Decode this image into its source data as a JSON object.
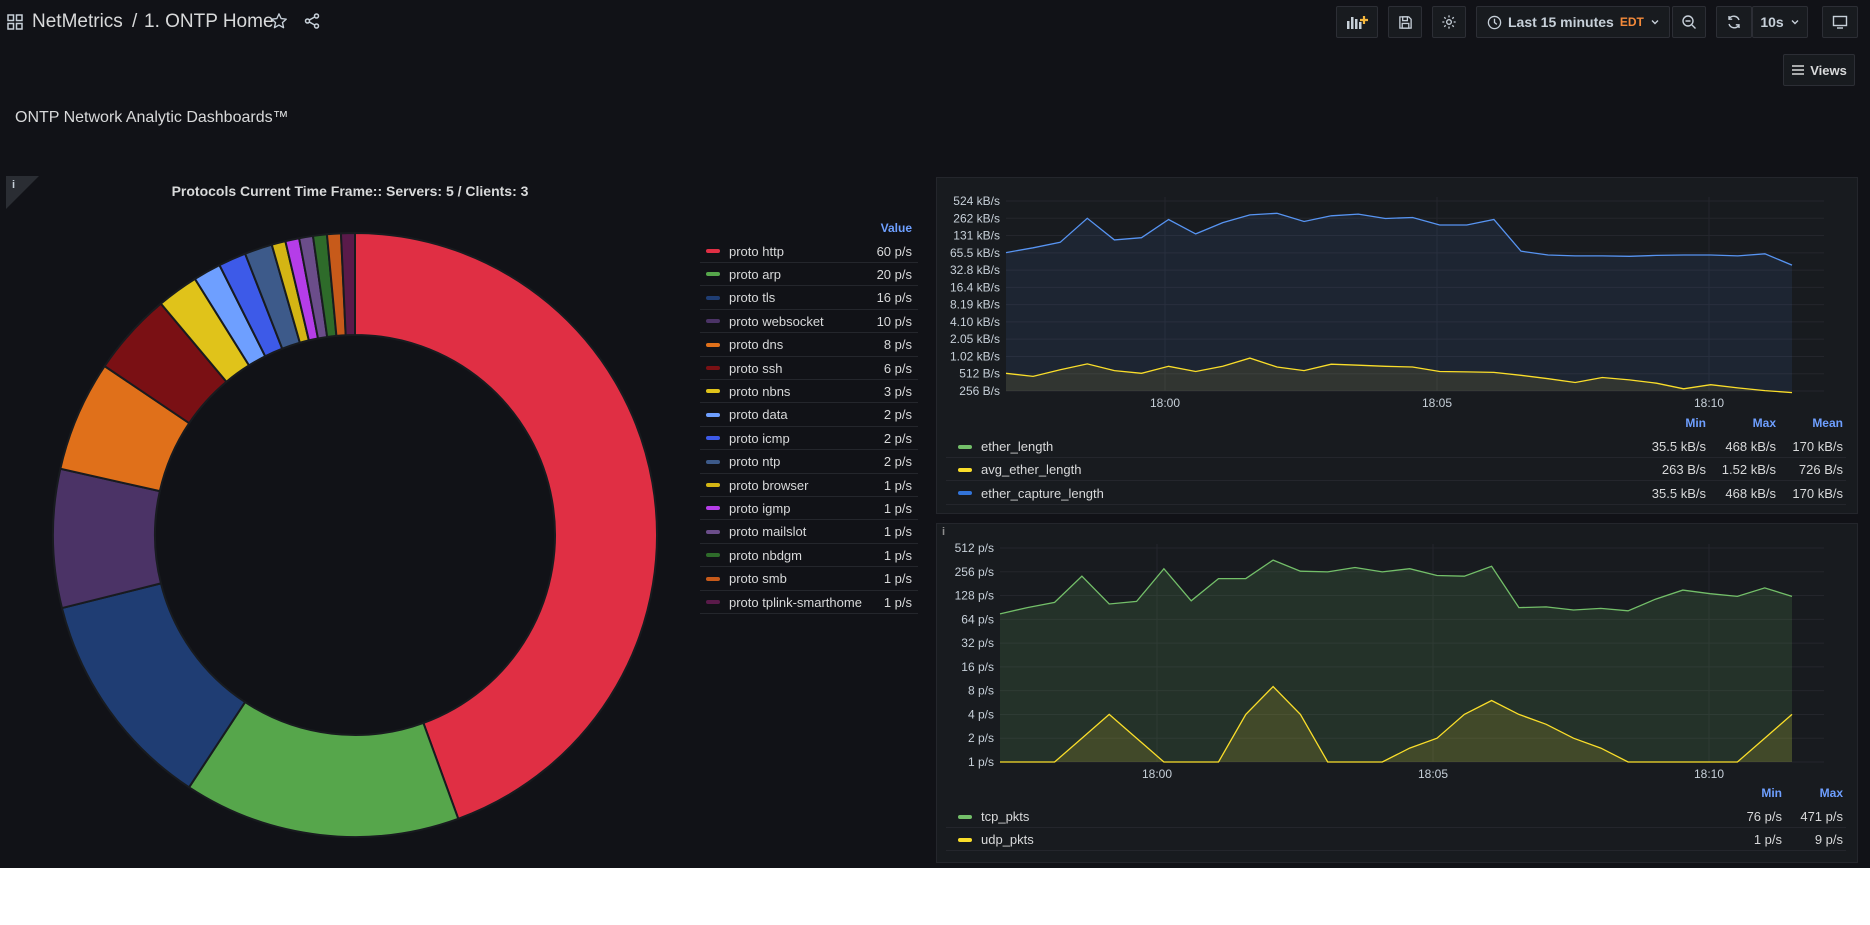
{
  "header": {
    "app_name": "NetMetrics",
    "separator": "/",
    "dashboard_title": "1. ONTP Home",
    "time_range": "Last 15 minutes",
    "timezone": "EDT",
    "refresh_interval": "10s",
    "views_label": "Views"
  },
  "dashboard": {
    "heading": "ONTP Network Analytic Dashboards™"
  },
  "protocols": {
    "title": "Protocols Current Time Frame:: Servers: 5 / Clients: 3",
    "legend_value_header": "Value",
    "items": [
      {
        "name": "proto http",
        "value": "60 p/s",
        "color": "#e02f44"
      },
      {
        "name": "proto arp",
        "value": "20 p/s",
        "color": "#56a64b"
      },
      {
        "name": "proto tls",
        "value": "16 p/s",
        "color": "#1f3d73"
      },
      {
        "name": "proto websocket",
        "value": "10 p/s",
        "color": "#4b3366"
      },
      {
        "name": "proto dns",
        "value": "8 p/s",
        "color": "#e0701a"
      },
      {
        "name": "proto ssh",
        "value": "6 p/s",
        "color": "#7a1014"
      },
      {
        "name": "proto nbns",
        "value": "3 p/s",
        "color": "#e0c31a"
      },
      {
        "name": "proto data",
        "value": "2 p/s",
        "color": "#6e9fff"
      },
      {
        "name": "proto icmp",
        "value": "2 p/s",
        "color": "#3d5ae8"
      },
      {
        "name": "proto ntp",
        "value": "2 p/s",
        "color": "#3d5a8a"
      },
      {
        "name": "proto browser",
        "value": "1 p/s",
        "color": "#d4b514"
      },
      {
        "name": "proto igmp",
        "value": "1 p/s",
        "color": "#b53de8"
      },
      {
        "name": "proto mailslot",
        "value": "1 p/s",
        "color": "#6b4d8a"
      },
      {
        "name": "proto nbdgm",
        "value": "1 p/s",
        "color": "#2e6b2a"
      },
      {
        "name": "proto smb",
        "value": "1 p/s",
        "color": "#c75a1a"
      },
      {
        "name": "proto tplink-smarthome",
        "value": "1 p/s",
        "color": "#5a1a4a"
      }
    ]
  },
  "chart_data": [
    {
      "type": "pie",
      "title": "Protocols Current Time Frame:: Servers: 5 / Clients: 3",
      "categories": [
        "proto http",
        "proto arp",
        "proto tls",
        "proto websocket",
        "proto dns",
        "proto ssh",
        "proto nbns",
        "proto data",
        "proto icmp",
        "proto ntp",
        "proto browser",
        "proto igmp",
        "proto mailslot",
        "proto nbdgm",
        "proto smb",
        "proto tplink-smarthome"
      ],
      "values": [
        60,
        20,
        16,
        10,
        8,
        6,
        3,
        2,
        2,
        2,
        1,
        1,
        1,
        1,
        1,
        1
      ],
      "unit": "p/s",
      "legend": "right"
    },
    {
      "type": "line",
      "scale": "log2",
      "y_ticks": [
        "256 B/s",
        "512 B/s",
        "1.02 kB/s",
        "2.05 kB/s",
        "4.10 kB/s",
        "8.19 kB/s",
        "16.4 kB/s",
        "32.8 kB/s",
        "65.5 kB/s",
        "131 kB/s",
        "262 kB/s",
        "524 kB/s"
      ],
      "x_ticks": [
        "18:00",
        "18:05",
        "18:10"
      ],
      "x_range": [
        "17:57:20",
        "18:12:00"
      ],
      "series": [
        {
          "name": "ether_length",
          "color": "#5794f2",
          "values_kBps": [
            66,
            80,
            100,
            262,
            110,
            120,
            250,
            140,
            220,
            300,
            320,
            230,
            290,
            310,
            260,
            270,
            200,
            200,
            250,
            70,
            60,
            58,
            58,
            57,
            59,
            60,
            60,
            58,
            63,
            40
          ]
        },
        {
          "name": "avg_ether_length",
          "color": "#fade2a",
          "values_Bps": [
            520,
            460,
            600,
            760,
            580,
            520,
            690,
            560,
            690,
            960,
            670,
            580,
            750,
            720,
            690,
            670,
            560,
            550,
            540,
            480,
            420,
            360,
            440,
            400,
            350,
            280,
            330,
            290,
            260,
            240
          ]
        }
      ],
      "legend_columns": [
        "Min",
        "Max",
        "Mean"
      ],
      "legend_rows": [
        {
          "name": "ether_length",
          "color": "#73bf69",
          "min": "35.5 kB/s",
          "max": "468 kB/s",
          "mean": "170 kB/s"
        },
        {
          "name": "avg_ether_length",
          "color": "#fade2a",
          "min": "263 B/s",
          "max": "1.52 kB/s",
          "mean": "726 B/s"
        },
        {
          "name": "ether_capture_length",
          "color": "#3274d9",
          "min": "35.5 kB/s",
          "max": "468 kB/s",
          "mean": "170 kB/s"
        }
      ]
    },
    {
      "type": "area",
      "scale": "log2",
      "y_ticks": [
        "1 p/s",
        "2 p/s",
        "4 p/s",
        "8 p/s",
        "16 p/s",
        "32 p/s",
        "64 p/s",
        "128 p/s",
        "256 p/s",
        "512 p/s"
      ],
      "x_ticks": [
        "18:00",
        "18:05",
        "18:10"
      ],
      "series": [
        {
          "name": "tcp_pkts",
          "color": "#73bf69",
          "values": [
            75,
            90,
            105,
            225,
            100,
            108,
            280,
            110,
            210,
            210,
            360,
            260,
            255,
            290,
            255,
            280,
            230,
            225,
            300,
            90,
            92,
            84,
            88,
            82,
            115,
            150,
            135,
            125,
            160,
            125
          ]
        },
        {
          "name": "udp_pkts",
          "color": "#fade2a",
          "values": [
            1,
            1,
            1,
            2,
            4,
            2,
            1,
            1,
            1,
            4,
            9,
            4,
            1,
            1,
            1,
            1.5,
            2,
            4,
            6,
            4,
            3,
            2,
            1.5,
            1,
            1,
            1,
            1,
            1,
            2,
            4
          ]
        }
      ],
      "legend_columns": [
        "Min",
        "Max"
      ],
      "legend_rows": [
        {
          "name": "tcp_pkts",
          "color": "#73bf69",
          "min": "76 p/s",
          "max": "471 p/s"
        },
        {
          "name": "udp_pkts",
          "color": "#fade2a",
          "min": "1 p/s",
          "max": "9 p/s"
        }
      ]
    }
  ]
}
